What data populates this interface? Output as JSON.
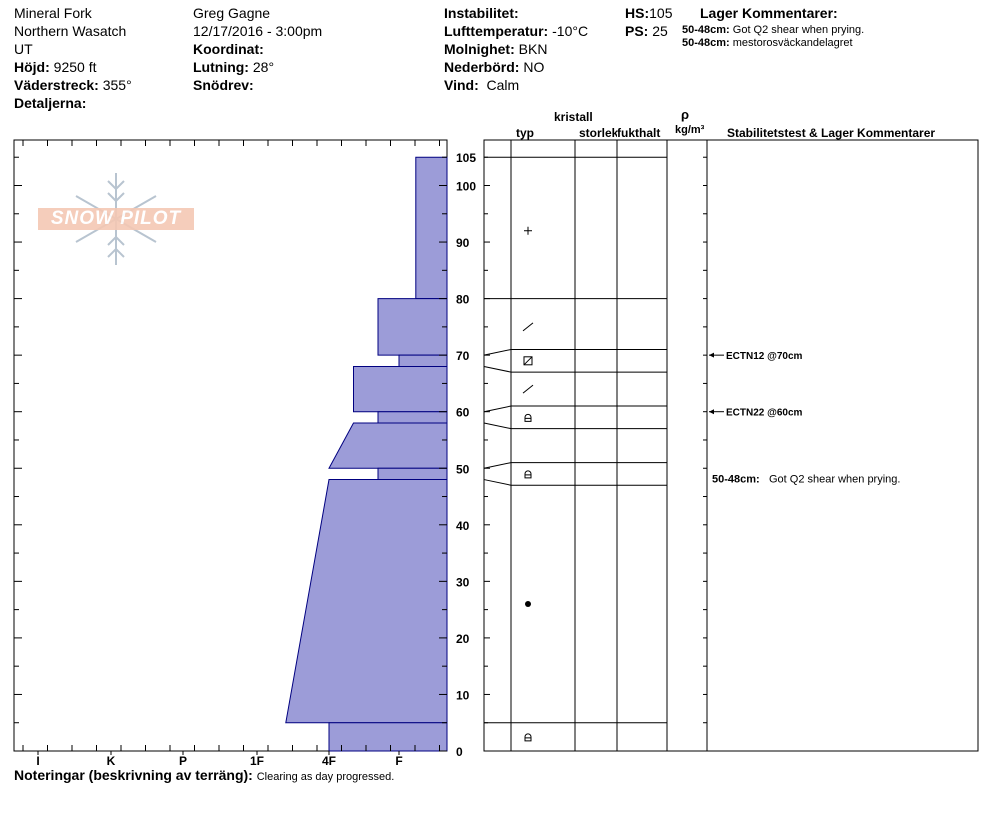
{
  "header": {
    "location": "Mineral Fork",
    "range": "Northern Wasatch",
    "state": "UT",
    "elevation_label": "Höjd:",
    "elevation_value": "9250 ft",
    "aspect_label": "Väderstreck:",
    "aspect_value": "355°",
    "details_label": "Detaljerna:",
    "observer": "Greg Gagne",
    "datetime": "12/17/2016 - 3:00pm",
    "coord_label": "Koordinat:",
    "slope_label": "Lutning:",
    "slope_value": "28°",
    "drift_label": "Snödrev:",
    "instability_label": "Instabilitet:",
    "airtemp_label": "Lufttemperatur:",
    "airtemp_value": "-10°C",
    "cloud_label": "Molnighet:",
    "cloud_value": "BKN",
    "precip_label": "Nederbörd:",
    "precip_value": "NO",
    "wind_label": "Vind:",
    "wind_value": "Calm",
    "hs_label": "HS:",
    "hs_value": "105",
    "ps_label": "PS:",
    "ps_value": "25",
    "layer_comments_title": "Lager Kommentarer:",
    "layer_comments": [
      {
        "range": "50-48cm:",
        "text": "Got Q2 shear when prying."
      },
      {
        "range": "50-48cm:",
        "text": "mestorosväckandelagret"
      }
    ]
  },
  "logo_text": "SNOW PILOT",
  "columns": {
    "crystal_label": "kristall",
    "type_label": "typ",
    "size_label": "storlek",
    "moisture_label": "fukthalt",
    "rho_symbol": "ρ",
    "density_unit": "kg/m³",
    "stability_label": "Stabilitetstest & Lager Kommentarer"
  },
  "notes": {
    "label": "Noteringar (beskrivning av terräng):",
    "text": "Clearing as day progressed."
  },
  "colors": {
    "profile_fill": "#9c9cd8",
    "profile_stroke": "#000080"
  },
  "chart_data": {
    "type": "snow-profile",
    "depth_axis": {
      "min": 0,
      "max": 105,
      "labels": [
        105,
        100,
        90,
        80,
        70,
        60,
        50,
        40,
        30,
        20,
        10,
        0
      ]
    },
    "hardness_axis": {
      "categories": [
        "I",
        "K",
        "P",
        "1F",
        "4F",
        "F"
      ]
    },
    "hardness_profile": [
      {
        "top": 105,
        "bottom": 80,
        "hardness_top": 0.65,
        "hardness_bottom": 0.65
      },
      {
        "top": 80,
        "bottom": 70,
        "hardness_top": 1.3,
        "hardness_bottom": 1.3
      },
      {
        "top": 70,
        "bottom": 68,
        "hardness_top": 1.0,
        "hardness_bottom": 1.0
      },
      {
        "top": 68,
        "bottom": 60,
        "hardness_top": 1.65,
        "hardness_bottom": 1.65
      },
      {
        "top": 60,
        "bottom": 58,
        "hardness_top": 1.3,
        "hardness_bottom": 1.3
      },
      {
        "top": 58,
        "bottom": 50,
        "hardness_top": 1.65,
        "hardness_bottom": 2.0
      },
      {
        "top": 50,
        "bottom": 48,
        "hardness_top": 1.3,
        "hardness_bottom": 1.3
      },
      {
        "top": 48,
        "bottom": 5,
        "hardness_top": 2.0,
        "hardness_bottom": 2.6
      },
      {
        "top": 5,
        "bottom": 0,
        "hardness_top": 2.0,
        "hardness_bottom": 2.0
      }
    ],
    "layer_boundaries": [
      105,
      80,
      71,
      67,
      61,
      57,
      51,
      47,
      5
    ],
    "crystal_types": [
      {
        "depth": 92,
        "symbol": "+"
      },
      {
        "depth": 75,
        "symbol": "/"
      },
      {
        "depth": 69,
        "symbol": "box"
      },
      {
        "depth": 64,
        "symbol": "/"
      },
      {
        "depth": 59,
        "symbol": "cap"
      },
      {
        "depth": 49,
        "symbol": "cap"
      },
      {
        "depth": 26,
        "symbol": "dot"
      },
      {
        "depth": 2.5,
        "symbol": "cap"
      }
    ],
    "stability_tests": [
      {
        "depth": 70,
        "label": "ECTN12 @70cm"
      },
      {
        "depth": 60,
        "label": "ECTN22 @60cm"
      }
    ],
    "stability_comment": {
      "depth": 48,
      "range": "50-48cm:",
      "text": "Got Q2 shear when prying."
    }
  }
}
